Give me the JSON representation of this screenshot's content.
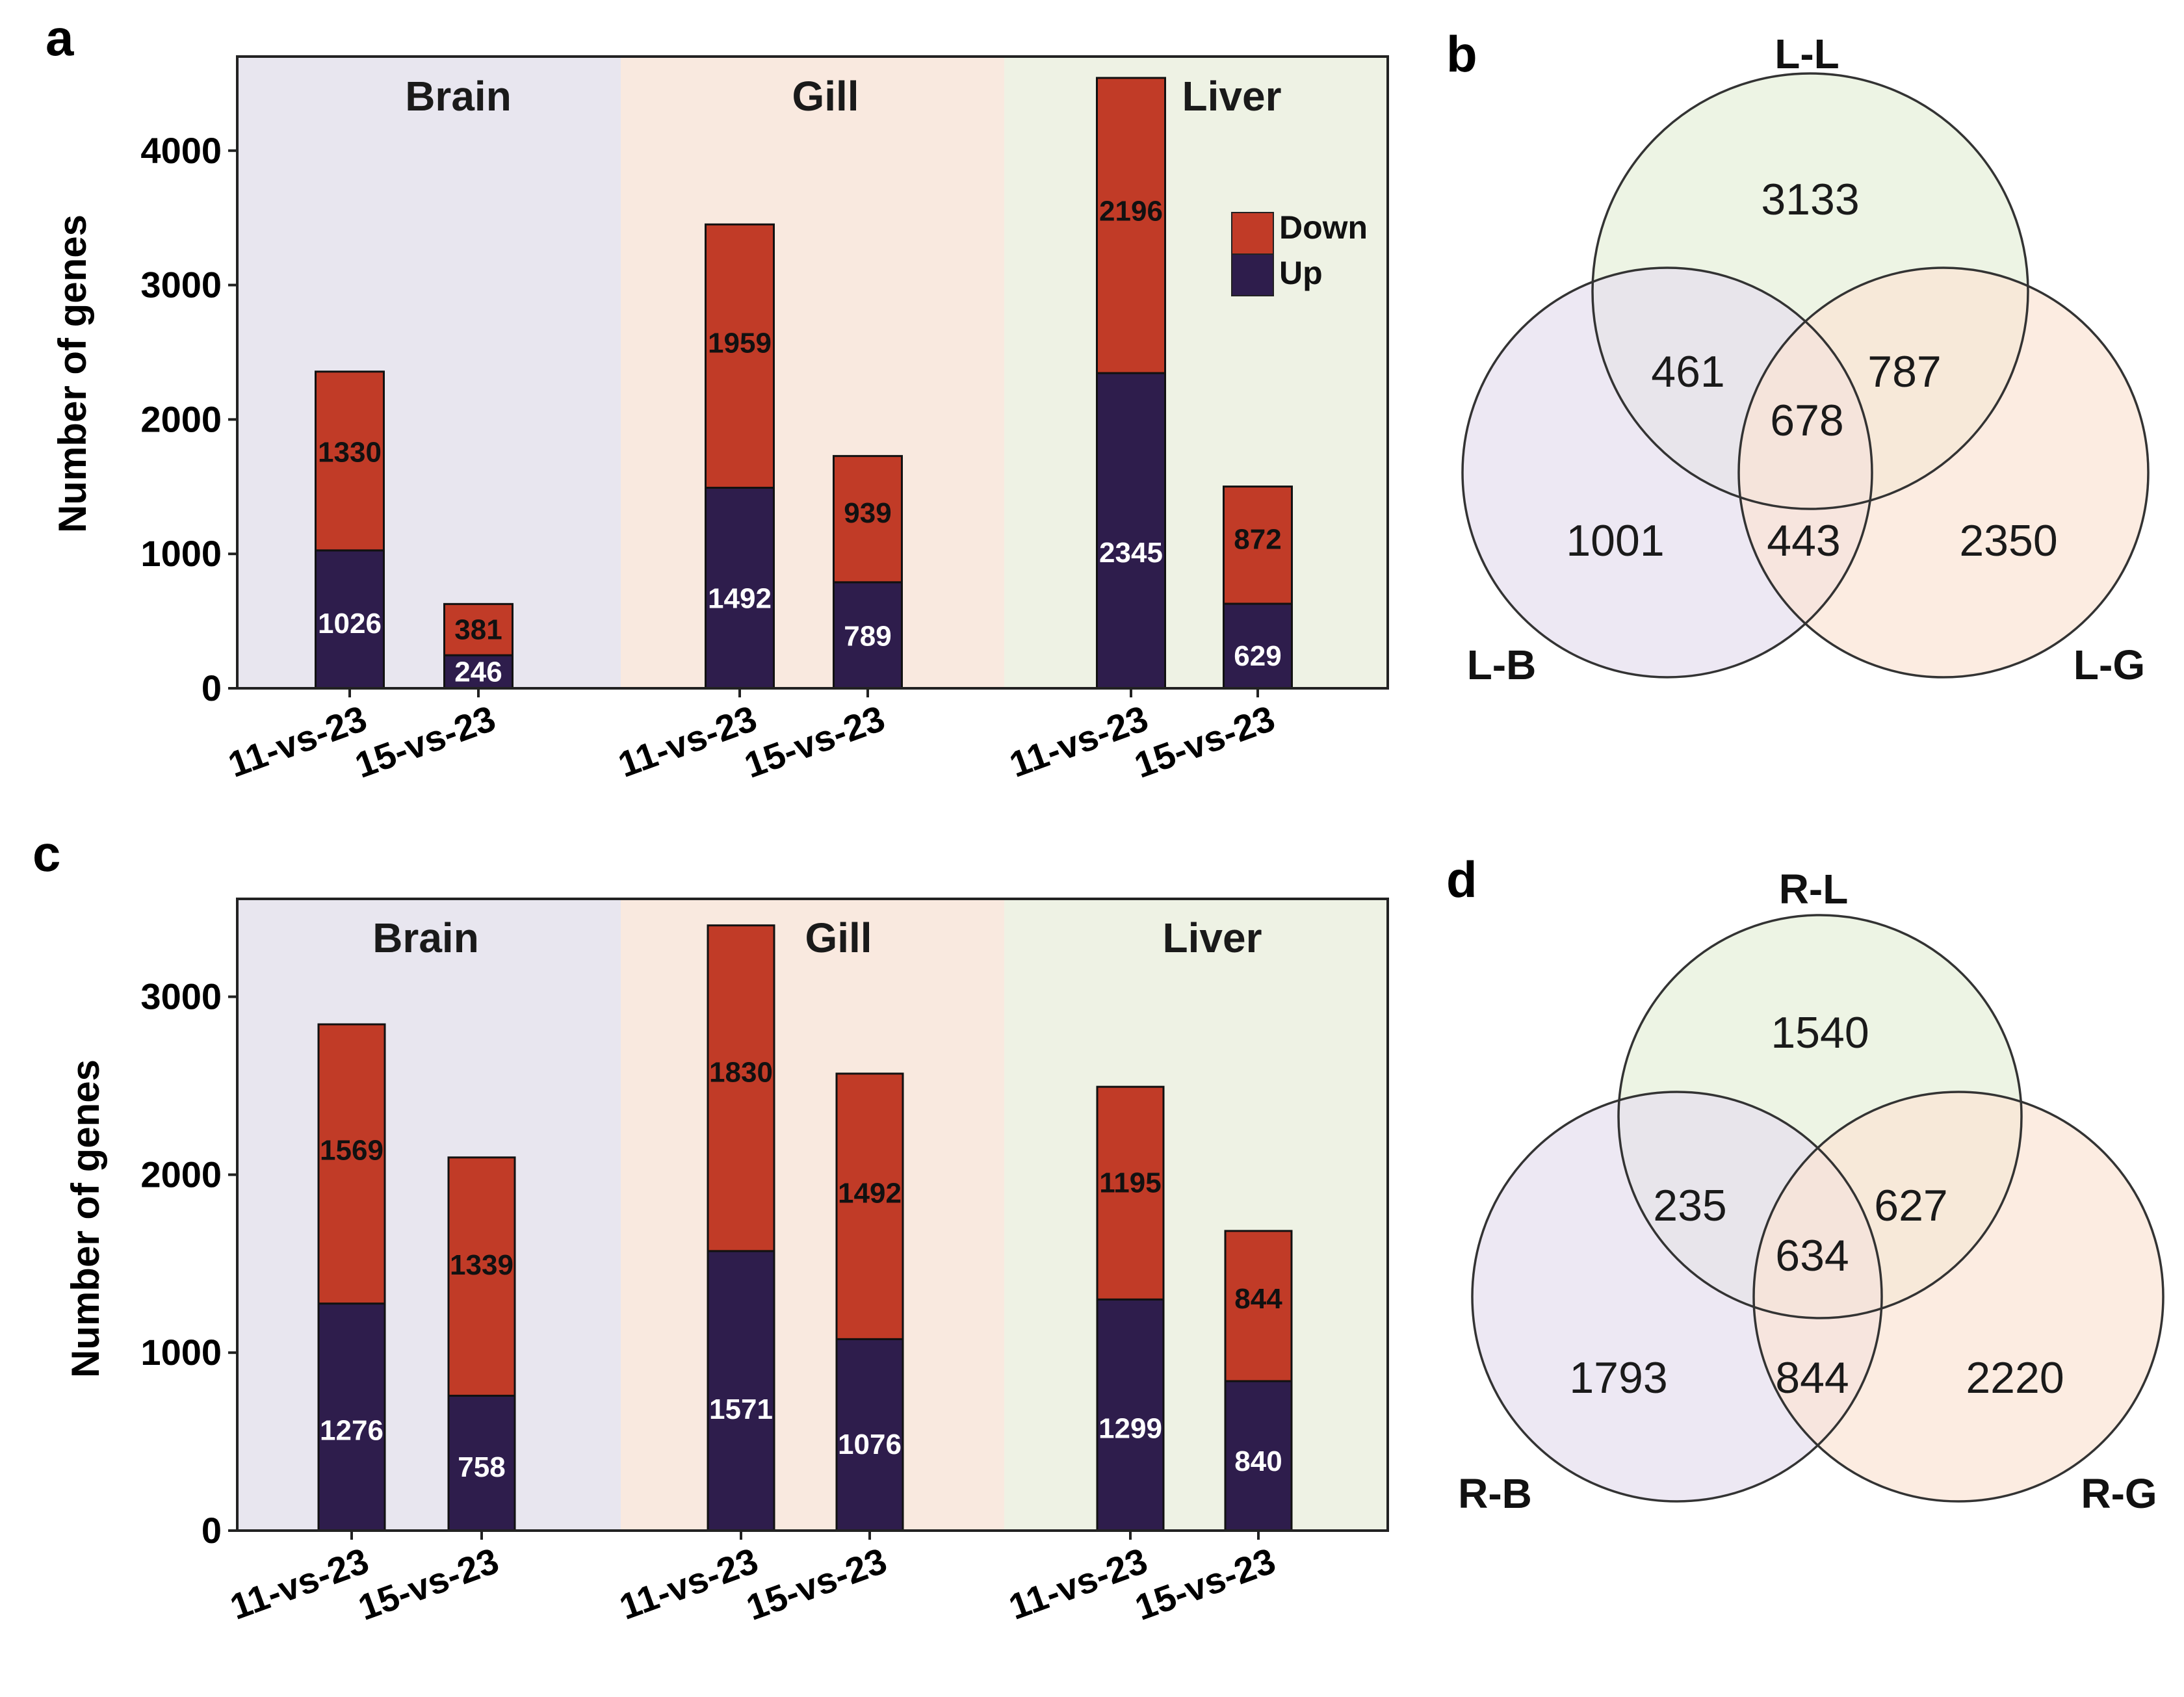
{
  "colors": {
    "up": "#2e1d4c",
    "down": "#c13b27",
    "bg_brain": "#e8e6ef",
    "bg_gill": "#f9e9df",
    "bg_liver": "#eef2e4",
    "venn_top": "#e6f0d8",
    "venn_left": "#e6deee",
    "venn_right": "#fbe4d4"
  },
  "panels": {
    "a": "a",
    "b": "b",
    "c": "c",
    "d": "d"
  },
  "chart_data": [
    {
      "id": "a",
      "type": "bar",
      "stacked": true,
      "ylabel": "Number of genes",
      "ylim": [
        0,
        4700
      ],
      "yticks": [
        0,
        1000,
        2000,
        3000,
        4000
      ],
      "groups": [
        "Brain",
        "Gill",
        "Liver"
      ],
      "categories": [
        "11-vs-23",
        "15-vs-23",
        "11-vs-23",
        "15-vs-23",
        "11-vs-23",
        "15-vs-23"
      ],
      "legend": {
        "position": "top-right",
        "entries": [
          "Down",
          "Up"
        ]
      },
      "series": [
        {
          "name": "Up",
          "values": [
            1026,
            246,
            1492,
            789,
            2345,
            629
          ]
        },
        {
          "name": "Down",
          "values": [
            1330,
            381,
            1959,
            939,
            2196,
            872
          ]
        }
      ]
    },
    {
      "id": "c",
      "type": "bar",
      "stacked": true,
      "ylabel": "Number of genes",
      "ylim": [
        0,
        3550
      ],
      "yticks": [
        0,
        1000,
        2000,
        3000
      ],
      "groups": [
        "Brain",
        "Gill",
        "Liver"
      ],
      "categories": [
        "11-vs-23",
        "15-vs-23",
        "11-vs-23",
        "15-vs-23",
        "11-vs-23",
        "15-vs-23"
      ],
      "series": [
        {
          "name": "Up",
          "values": [
            1276,
            758,
            1571,
            1076,
            1299,
            840
          ]
        },
        {
          "name": "Down",
          "values": [
            1569,
            1339,
            1830,
            1492,
            1195,
            844
          ]
        }
      ]
    }
  ],
  "venn_b": {
    "sets": [
      "L-L",
      "L-B",
      "L-G"
    ],
    "regions": {
      "top_only": "3133",
      "left_only": "1001",
      "right_only": "2350",
      "top_left": "461",
      "top_right": "787",
      "left_right": "443",
      "all": "678"
    }
  },
  "venn_d": {
    "sets": [
      "R-L",
      "R-B",
      "R-G"
    ],
    "regions": {
      "top_only": "1540",
      "left_only": "1793",
      "right_only": "2220",
      "top_left": "235",
      "top_right": "627",
      "left_right": "844",
      "all": "634"
    }
  }
}
